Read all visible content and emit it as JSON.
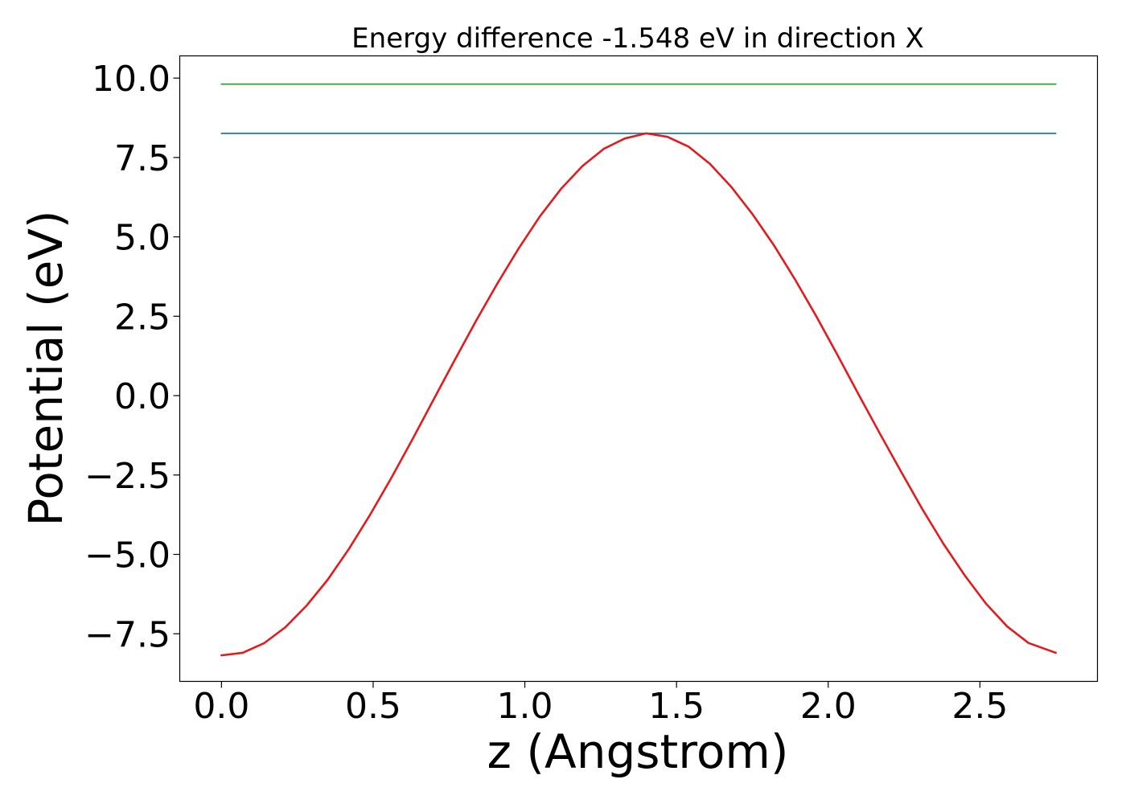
{
  "chart_data": {
    "type": "line",
    "title": "Energy difference -1.548 eV in direction X",
    "xlabel": "z (Angstrom)",
    "ylabel": "Potential (eV)",
    "xlim": [
      -0.1375,
      2.8875
    ],
    "ylim": [
      -9.0,
      10.7
    ],
    "x_ticks": [
      0.0,
      0.5,
      1.0,
      1.5,
      2.0,
      2.5
    ],
    "x_tick_labels": [
      "0.0",
      "0.5",
      "1.0",
      "1.5",
      "2.0",
      "2.5"
    ],
    "y_ticks": [
      -7.5,
      -5.0,
      -2.5,
      0.0,
      2.5,
      5.0,
      7.5,
      10.0
    ],
    "y_tick_labels": [
      "−7.5",
      "−5.0",
      "−2.5",
      "0.0",
      "2.5",
      "5.0",
      "7.5",
      "10.0"
    ],
    "grid": false,
    "legend": "none",
    "series": [
      {
        "color": "#2ca02c",
        "x": [
          0.0,
          2.75
        ],
        "y": [
          9.81,
          9.81
        ]
      },
      {
        "color": "#1f77b4",
        "x": [
          0.0,
          2.75
        ],
        "y": [
          8.26,
          8.26
        ]
      },
      {
        "color": "#e41a1c",
        "x": [
          0.0,
          0.07,
          0.14,
          0.21,
          0.28,
          0.35,
          0.42,
          0.49,
          0.56,
          0.63,
          0.7,
          0.77,
          0.84,
          0.91,
          0.98,
          1.05,
          1.12,
          1.19,
          1.26,
          1.33,
          1.4,
          1.47,
          1.54,
          1.61,
          1.68,
          1.75,
          1.82,
          1.89,
          1.96,
          2.03,
          2.1,
          2.17,
          2.24,
          2.31,
          2.38,
          2.45,
          2.52,
          2.59,
          2.66,
          2.75
        ],
        "y": [
          -8.18,
          -8.1,
          -7.8,
          -7.3,
          -6.62,
          -5.8,
          -4.83,
          -3.75,
          -2.59,
          -1.37,
          -0.11,
          1.14,
          2.37,
          3.54,
          4.64,
          5.65,
          6.52,
          7.23,
          7.77,
          8.1,
          8.26,
          8.15,
          7.84,
          7.3,
          6.58,
          5.72,
          4.75,
          3.67,
          2.51,
          1.29,
          0.04,
          -1.19,
          -2.39,
          -3.57,
          -4.67,
          -5.66,
          -6.55,
          -7.27,
          -7.79,
          -8.1
        ]
      }
    ]
  }
}
